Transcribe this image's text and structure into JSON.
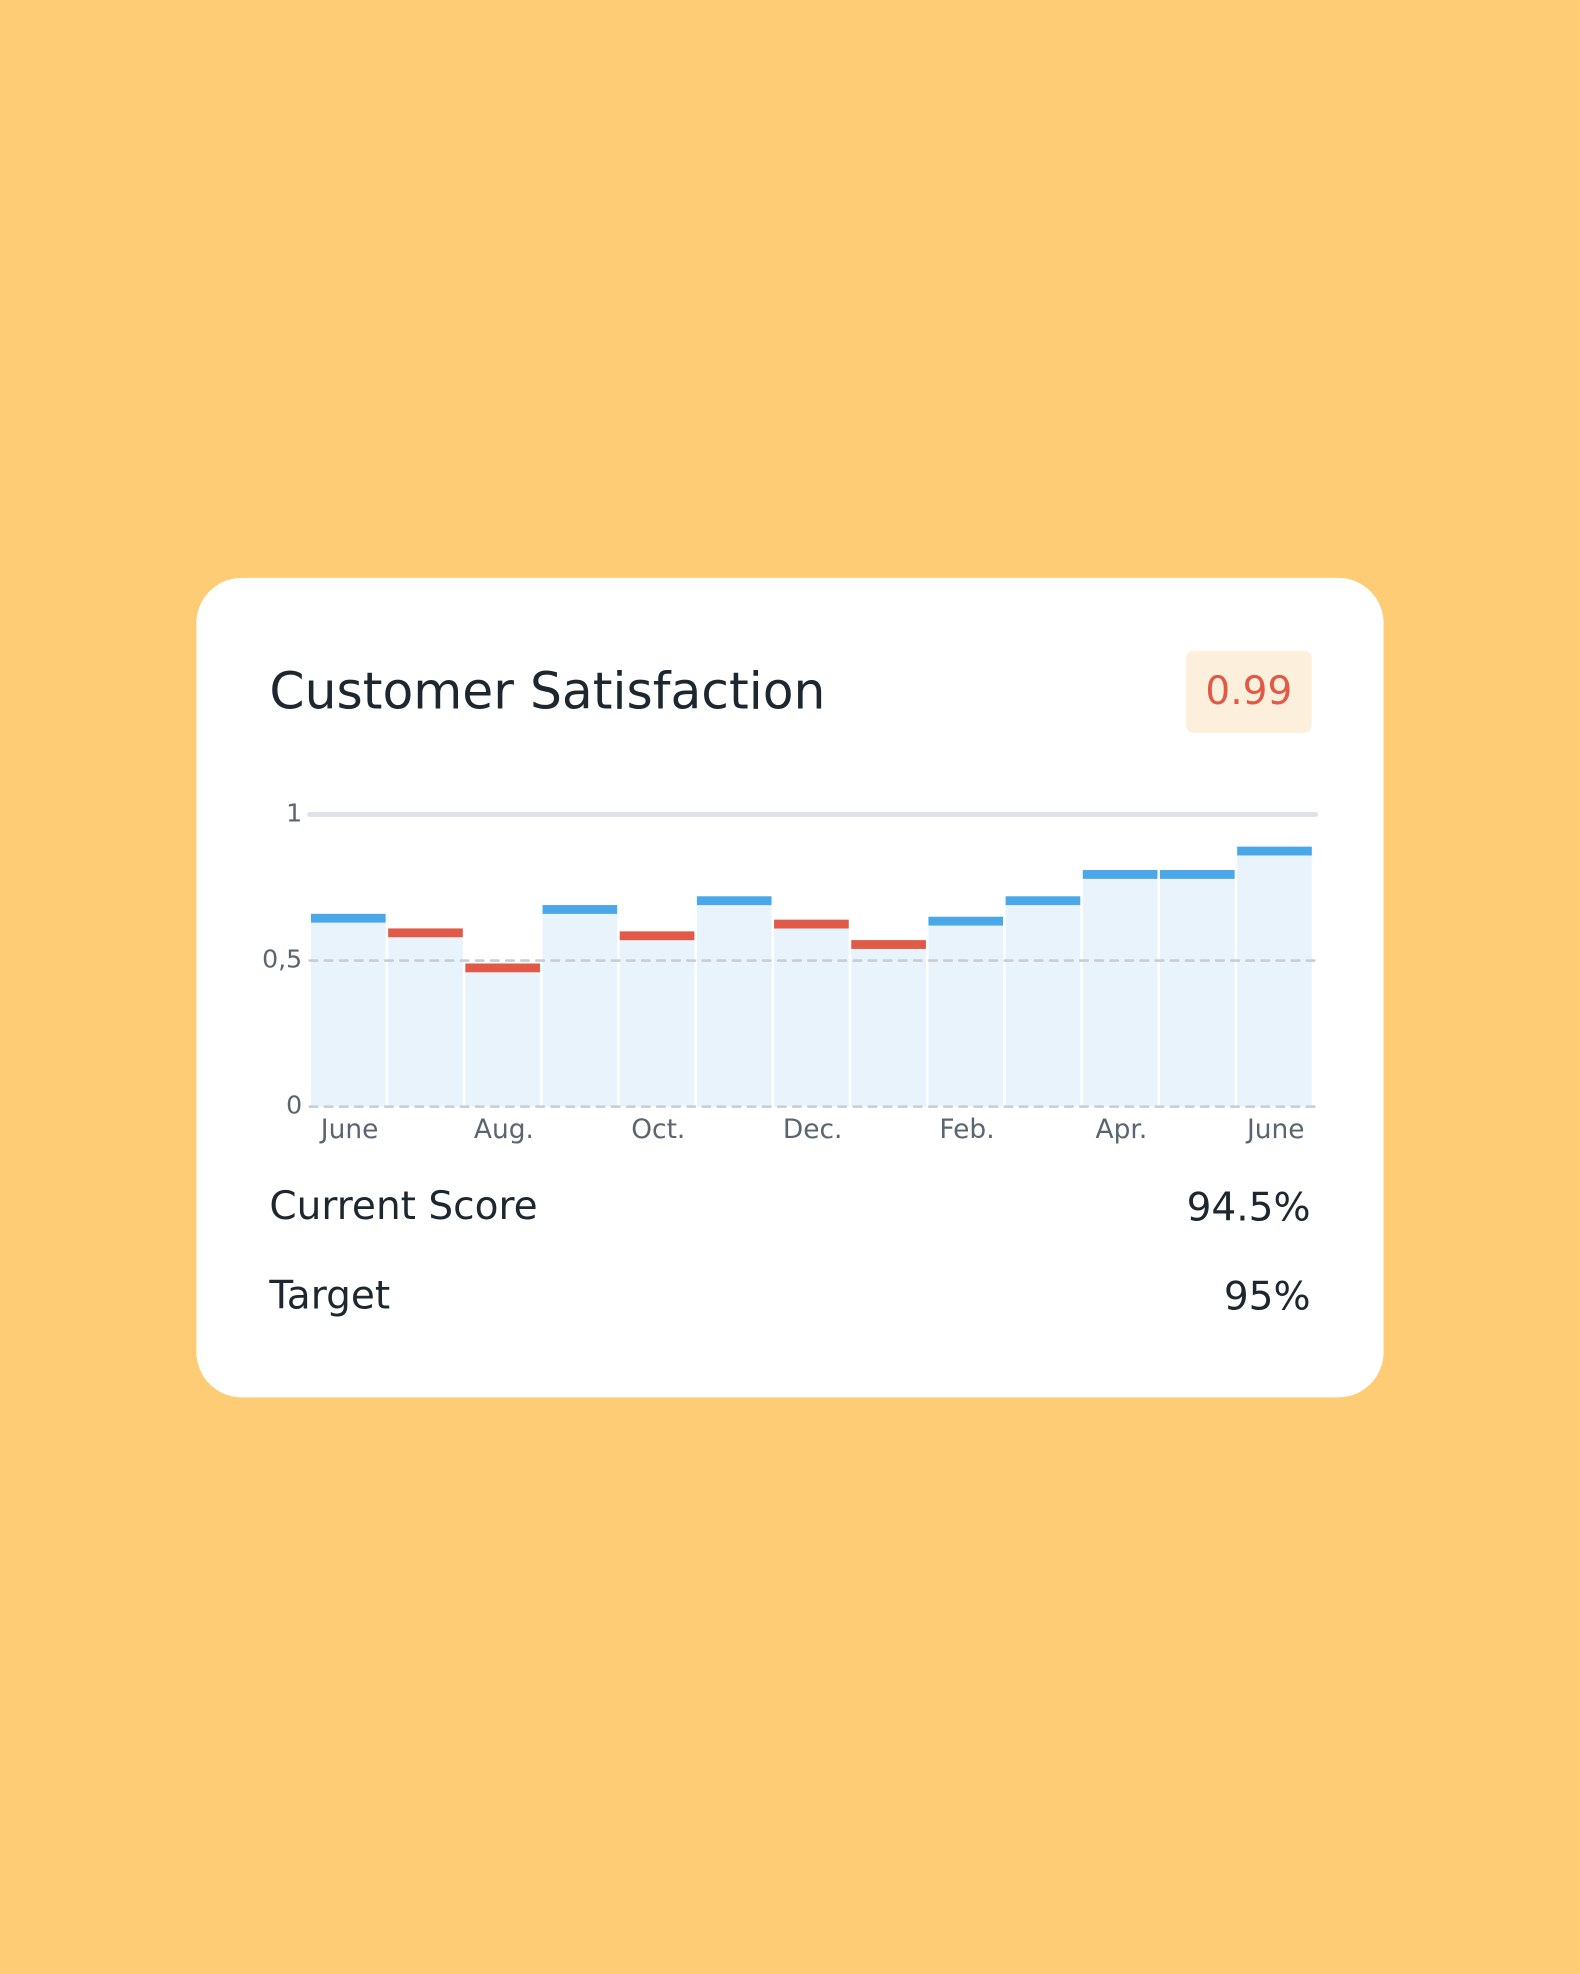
{
  "header": {
    "title": "Customer Satisfaction",
    "badge": "0.99"
  },
  "chart_data": {
    "type": "bar",
    "categories": [
      "June",
      null,
      "Aug.",
      null,
      "Oct.",
      null,
      "Dec.",
      null,
      "Feb.",
      null,
      "Apr.",
      null,
      "June"
    ],
    "values": [
      0.66,
      0.61,
      0.49,
      0.69,
      0.6,
      0.72,
      0.64,
      0.57,
      0.65,
      0.72,
      0.81,
      0.81,
      0.89
    ],
    "colors": [
      "#4aa8e8",
      "#e05a47",
      "#e05a47",
      "#4aa8e8",
      "#e05a47",
      "#4aa8e8",
      "#e05a47",
      "#e05a47",
      "#4aa8e8",
      "#4aa8e8",
      "#4aa8e8",
      "#4aa8e8",
      "#4aa8e8"
    ],
    "ylim": [
      0,
      1
    ],
    "yticks": [
      0,
      {
        "value": 0.5,
        "label": "0,5"
      },
      1
    ],
    "grid": true
  },
  "stats": [
    {
      "label": "Current Score",
      "value": "94.5%"
    },
    {
      "label": "Target",
      "value": "95%"
    }
  ]
}
